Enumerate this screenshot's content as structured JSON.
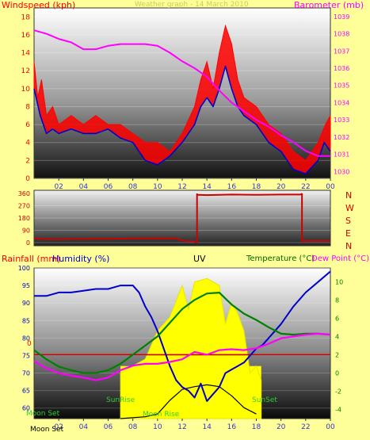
{
  "panel1": {
    "left_title": "Windspeed (kph)",
    "right_title": "Barometer (mb)",
    "header": "Weather graph - 14 March 2010",
    "y_left_ticks": [
      "0",
      "2",
      "4",
      "6",
      "8",
      "10",
      "12",
      "14",
      "16",
      "18"
    ],
    "y_right_ticks": [
      "1030",
      "1031",
      "1032",
      "1033",
      "1034",
      "1035",
      "1036",
      "1037",
      "1038",
      "1039"
    ],
    "x_ticks": [
      "02",
      "04",
      "06",
      "08",
      "10",
      "12",
      "14",
      "16",
      "18",
      "20",
      "22",
      "00"
    ]
  },
  "panel2": {
    "y_ticks": [
      "0",
      "90",
      "180",
      "270",
      "360"
    ],
    "dir_labels": [
      "N",
      "W",
      "S",
      "E",
      "N"
    ]
  },
  "panel3": {
    "rain_title": "Rainfall (mm)",
    "hum_title": "Humidity (%)",
    "uv_title": "UV",
    "temp_title": "Temperature (°C)",
    "dew_title": "Dew Point (°C)",
    "y_left_ticks": [
      "60",
      "65",
      "70",
      "75",
      "80",
      "85",
      "90",
      "95",
      "100"
    ],
    "y_right_ticks": [
      "-4",
      "-2",
      "0",
      "2",
      "4",
      "6",
      "8",
      "10"
    ],
    "rain_zero": "0",
    "x_ticks": [
      "02",
      "04",
      "06",
      "08",
      "10",
      "12",
      "14",
      "16",
      "18",
      "20",
      "22",
      "00"
    ],
    "moonset_axis": "Moon Set",
    "moonset": "Moon Set",
    "sunrise": "SunRise",
    "sunset": "SunSet",
    "moonrise": "Moon Rise"
  },
  "colors": {
    "wind": "#ff0000",
    "wind_avg": "#0000cc",
    "baro": "#ff00ff",
    "dir": "#cc0000",
    "humidity": "#0000cc",
    "temperature": "#008000",
    "dewpoint": "#ff00ff",
    "uv": "#ffff00",
    "solar": "#000000",
    "rain": "#cc0000",
    "background": "#ffff99"
  },
  "chart_data": [
    {
      "type": "line",
      "x_unit": "hour",
      "xlim": [
        0,
        24
      ],
      "series": [
        {
          "name": "Windspeed (kph)",
          "axis": "left",
          "points": [
            [
              0,
              13
            ],
            [
              0.3,
              9
            ],
            [
              0.6,
              11
            ],
            [
              1,
              7
            ],
            [
              1.5,
              8
            ],
            [
              2,
              6
            ],
            [
              3,
              7
            ],
            [
              4,
              6
            ],
            [
              5,
              7
            ],
            [
              6,
              6
            ],
            [
              7,
              6
            ],
            [
              8,
              5
            ],
            [
              9,
              4
            ],
            [
              10,
              4
            ],
            [
              11,
              3
            ],
            [
              12,
              5
            ],
            [
              13,
              8
            ],
            [
              13.5,
              11
            ],
            [
              14,
              13
            ],
            [
              14.5,
              10
            ],
            [
              15,
              14
            ],
            [
              15.5,
              17
            ],
            [
              16,
              15
            ],
            [
              16.5,
              11
            ],
            [
              17,
              9
            ],
            [
              18,
              8
            ],
            [
              19,
              6
            ],
            [
              20,
              5
            ],
            [
              21,
              3
            ],
            [
              22,
              2
            ],
            [
              23,
              4
            ],
            [
              23.6,
              6
            ],
            [
              24,
              7
            ]
          ]
        },
        {
          "name": "Windspeed avg",
          "axis": "left",
          "points": [
            [
              0,
              10
            ],
            [
              0.5,
              7
            ],
            [
              1,
              5
            ],
            [
              1.5,
              5.5
            ],
            [
              2,
              5
            ],
            [
              3,
              5.5
            ],
            [
              4,
              5
            ],
            [
              5,
              5
            ],
            [
              6,
              5.5
            ],
            [
              7,
              4.5
            ],
            [
              8,
              4
            ],
            [
              9,
              2
            ],
            [
              10,
              1.5
            ],
            [
              11,
              2.5
            ],
            [
              12,
              4
            ],
            [
              13,
              6
            ],
            [
              13.5,
              8
            ],
            [
              14,
              9
            ],
            [
              14.5,
              8
            ],
            [
              15,
              10
            ],
            [
              15.5,
              12.5
            ],
            [
              16,
              10
            ],
            [
              16.5,
              8
            ],
            [
              17,
              7
            ],
            [
              18,
              6
            ],
            [
              19,
              4
            ],
            [
              20,
              3
            ],
            [
              21,
              1
            ],
            [
              22,
              0.5
            ],
            [
              23,
              2
            ],
            [
              23.5,
              4
            ],
            [
              24,
              3
            ]
          ]
        },
        {
          "name": "Barometer (mb)",
          "axis": "right",
          "points": [
            [
              0,
              1038.2
            ],
            [
              1,
              1038.0
            ],
            [
              2,
              1037.7
            ],
            [
              3,
              1037.5
            ],
            [
              4,
              1037.1
            ],
            [
              5,
              1037.1
            ],
            [
              6,
              1037.3
            ],
            [
              7,
              1037.4
            ],
            [
              8,
              1037.4
            ],
            [
              9,
              1037.4
            ],
            [
              10,
              1037.3
            ],
            [
              11,
              1036.9
            ],
            [
              12,
              1036.4
            ],
            [
              13,
              1036.0
            ],
            [
              14,
              1035.5
            ],
            [
              15,
              1034.7
            ],
            [
              16,
              1034.0
            ],
            [
              17,
              1033.5
            ],
            [
              18,
              1033.0
            ],
            [
              19,
              1032.6
            ],
            [
              20,
              1032.1
            ],
            [
              21,
              1031.7
            ],
            [
              22,
              1031.2
            ],
            [
              23,
              1030.9
            ],
            [
              24,
              1030.9
            ]
          ]
        }
      ],
      "ylim_left": [
        0,
        19
      ],
      "ylim_right": [
        1029.6,
        1039.5
      ]
    },
    {
      "type": "line",
      "x_unit": "hour",
      "xlim": [
        0,
        24
      ],
      "series": [
        {
          "name": "Wind direction",
          "points": [
            [
              0,
              30
            ],
            [
              1,
              25
            ],
            [
              2,
              25
            ],
            [
              4,
              28
            ],
            [
              6,
              28
            ],
            [
              8,
              30
            ],
            [
              10,
              32
            ],
            [
              11.5,
              30
            ],
            [
              12,
              15
            ],
            [
              12.8,
              8
            ],
            [
              13,
              8
            ],
            [
              13.2,
              350
            ],
            [
              14,
              348
            ],
            [
              16,
              352
            ],
            [
              18,
              350
            ],
            [
              20,
              352
            ],
            [
              21.6,
              352
            ],
            [
              21.7,
              15
            ],
            [
              22,
              12
            ],
            [
              24,
              12
            ]
          ]
        }
      ],
      "ylim": [
        0,
        360
      ]
    },
    {
      "type": "line",
      "x_unit": "hour",
      "xlim": [
        0,
        24
      ],
      "series": [
        {
          "name": "Humidity (%)",
          "axis": "left",
          "points": [
            [
              0,
              92
            ],
            [
              1,
              92
            ],
            [
              2,
              93
            ],
            [
              3,
              93
            ],
            [
              4,
              93.5
            ],
            [
              5,
              94
            ],
            [
              6,
              94
            ],
            [
              7,
              95
            ],
            [
              8,
              95
            ],
            [
              8.5,
              93
            ],
            [
              9,
              89
            ],
            [
              9.5,
              86
            ],
            [
              10,
              82
            ],
            [
              10.5,
              77
            ],
            [
              11,
              72
            ],
            [
              11.5,
              68
            ],
            [
              12,
              66
            ],
            [
              12.5,
              65
            ],
            [
              13,
              63
            ],
            [
              13.5,
              67
            ],
            [
              14,
              62
            ],
            [
              14.5,
              64
            ],
            [
              15,
              66
            ],
            [
              15.5,
              70
            ],
            [
              16,
              71
            ],
            [
              16.5,
              72
            ],
            [
              17,
              73
            ],
            [
              17.5,
              75
            ],
            [
              18,
              77
            ],
            [
              18.5,
              78
            ],
            [
              19,
              80
            ],
            [
              20,
              84
            ],
            [
              21,
              89
            ],
            [
              22,
              93
            ],
            [
              23,
              96
            ],
            [
              24,
              99
            ]
          ]
        },
        {
          "name": "Temperature (°C)",
          "axis": "right",
          "points": [
            [
              0,
              2.5
            ],
            [
              1,
              1.5
            ],
            [
              2,
              0.7
            ],
            [
              3,
              0.3
            ],
            [
              4,
              0
            ],
            [
              5,
              0
            ],
            [
              6,
              0.3
            ],
            [
              7,
              1
            ],
            [
              8,
              2
            ],
            [
              9,
              3
            ],
            [
              10,
              4
            ],
            [
              11,
              5.5
            ],
            [
              12,
              7
            ],
            [
              13,
              8
            ],
            [
              14,
              8.7
            ],
            [
              15,
              8.8
            ],
            [
              16,
              7.5
            ],
            [
              17,
              6.5
            ],
            [
              18,
              5.8
            ],
            [
              19,
              5
            ],
            [
              20,
              4.3
            ],
            [
              21,
              4.2
            ],
            [
              22,
              4.3
            ],
            [
              23,
              4.3
            ],
            [
              24,
              4.2
            ]
          ]
        },
        {
          "name": "Dew Point (°C)",
          "axis": "right",
          "points": [
            [
              0,
              1.3
            ],
            [
              1,
              0.5
            ],
            [
              2,
              0
            ],
            [
              3,
              -0.3
            ],
            [
              4,
              -0.5
            ],
            [
              5,
              -0.8
            ],
            [
              6,
              -0.5
            ],
            [
              7,
              0.3
            ],
            [
              8,
              0.8
            ],
            [
              9,
              1
            ],
            [
              10,
              1
            ],
            [
              11,
              1.2
            ],
            [
              12,
              1.5
            ],
            [
              13,
              2.3
            ],
            [
              14,
              2
            ],
            [
              15,
              2.5
            ],
            [
              16,
              2.6
            ],
            [
              17,
              2.5
            ],
            [
              18,
              2.7
            ],
            [
              19,
              3.2
            ],
            [
              20,
              3.8
            ],
            [
              21,
              4.0
            ],
            [
              22,
              4.2
            ],
            [
              23,
              4.3
            ],
            [
              24,
              4.2
            ]
          ]
        },
        {
          "name": "Solar",
          "axis": "right",
          "points": [
            [
              7,
              -5
            ],
            [
              9,
              -4.8
            ],
            [
              10,
              -4.5
            ],
            [
              11,
              -3
            ],
            [
              12,
              -1.8
            ],
            [
              13,
              -1.5
            ],
            [
              14,
              -1.3
            ],
            [
              15,
              -1.5
            ],
            [
              16,
              -2.5
            ],
            [
              17,
              -3.8
            ],
            [
              18,
              -4.5
            ]
          ]
        },
        {
          "name": "UV",
          "axis": "left",
          "points": [
            [
              7,
              70
            ],
            [
              8,
              72
            ],
            [
              9,
              74
            ],
            [
              10,
              82
            ],
            [
              11,
              86
            ],
            [
              12,
              95
            ],
            [
              12.5,
              88
            ],
            [
              13,
              96
            ],
            [
              14,
              97
            ],
            [
              15,
              95
            ],
            [
              15.5,
              84
            ],
            [
              16,
              90
            ],
            [
              16.5,
              87
            ],
            [
              17,
              82
            ],
            [
              17.5,
              70
            ],
            [
              18,
              72
            ],
            [
              18.4,
              68
            ]
          ]
        }
      ],
      "ylim_left": [
        57,
        100
      ],
      "ylim_right": [
        -5,
        11.5
      ],
      "rain_zero_celsius": 2
    }
  ]
}
